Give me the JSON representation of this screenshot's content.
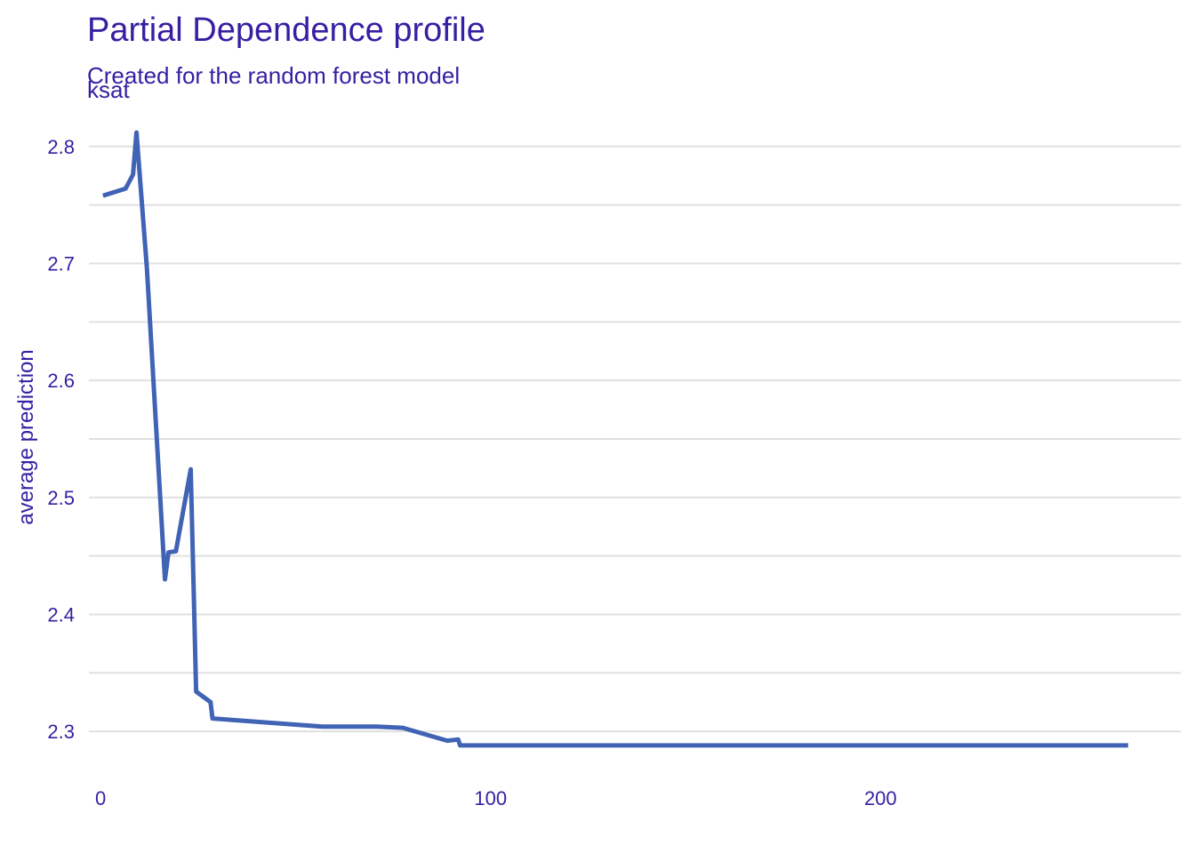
{
  "chart_data": {
    "type": "line",
    "title": "Partial Dependence profile",
    "subtitle": "Created for the random forest model",
    "facet_label": "ksat",
    "xlabel": "",
    "ylabel": "average prediction",
    "xlim": [
      -3,
      277
    ],
    "ylim": [
      2.275,
      2.825
    ],
    "x_ticks": [
      0,
      100,
      200
    ],
    "y_ticks": [
      2.3,
      2.4,
      2.5,
      2.6,
      2.7,
      2.8
    ],
    "y_minor_gridlines": [
      2.25,
      2.35,
      2.45,
      2.55,
      2.65,
      2.75
    ],
    "grid": true,
    "line_color": "#4063b5",
    "text_color": "#371ea3",
    "grid_color": "#e0e0e0",
    "series": [
      {
        "x": [
          0.6,
          6.4,
          8.3,
          9.2,
          11.9,
          16.5,
          17.4,
          19.3,
          23.1,
          24.5,
          28.2,
          28.7,
          56.9,
          70.9,
          77.5,
          88.9,
          91.7,
          92.1,
          92.2,
          263.5
        ],
        "y": [
          2.758,
          2.764,
          2.776,
          2.812,
          2.695,
          2.43,
          2.453,
          2.454,
          2.524,
          2.334,
          2.325,
          2.311,
          2.304,
          2.304,
          2.303,
          2.292,
          2.293,
          2.289,
          2.288,
          2.288
        ]
      }
    ]
  }
}
